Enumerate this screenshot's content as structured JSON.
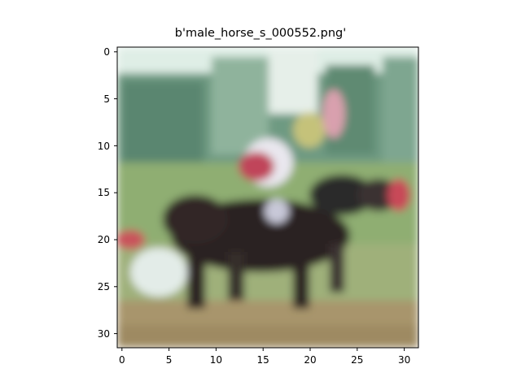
{
  "figure": {
    "title": "b'male_horse_s_000552.png'",
    "x_ticks": [
      "0",
      "5",
      "10",
      "15",
      "20",
      "25",
      "30"
    ],
    "y_ticks": [
      "0",
      "5",
      "10",
      "15",
      "20",
      "25",
      "30"
    ],
    "image_description": "blurry low-resolution photo of a dark horse with a jockey in red and white silks riding across green grass, trees in the background",
    "colors": {
      "sky": "#dfeee6",
      "trees": "#6e9a82",
      "grass": "#9fb07a",
      "horse": "#2a2422",
      "jockey_red": "#c0445a",
      "jockey_white": "#e9e7ee",
      "ground": "#a8956c"
    }
  }
}
